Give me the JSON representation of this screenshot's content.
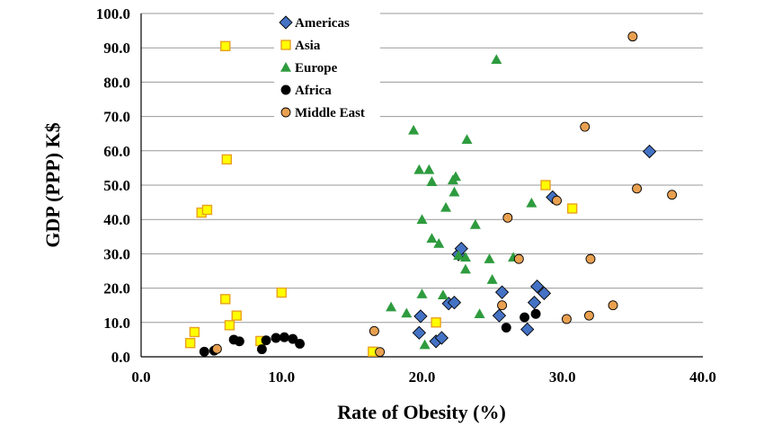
{
  "chart_data": {
    "type": "scatter",
    "xlabel": "Rate of Obesity (%)",
    "ylabel": "GDP (PPP) K$",
    "xlim": [
      0,
      40
    ],
    "ylim": [
      0,
      100
    ],
    "xticks": [
      "0.0",
      "10.0",
      "20.0",
      "30.0",
      "40.0"
    ],
    "yticks": [
      "0.0",
      "10.0",
      "20.0",
      "30.0",
      "40.0",
      "50.0",
      "60.0",
      "70.0",
      "80.0",
      "90.0",
      "100.0"
    ],
    "grid": "horizontal",
    "legend_position": "top-center",
    "series": [
      {
        "name": "Americas",
        "marker": "diamond",
        "color": "#4472C4",
        "points": [
          [
            19.8,
            7.0
          ],
          [
            19.9,
            11.8
          ],
          [
            21.0,
            4.5
          ],
          [
            21.4,
            5.5
          ],
          [
            21.9,
            15.5
          ],
          [
            22.3,
            15.8
          ],
          [
            22.6,
            29.8
          ],
          [
            22.8,
            31.5
          ],
          [
            25.5,
            12.0
          ],
          [
            25.7,
            18.8
          ],
          [
            27.5,
            8.0
          ],
          [
            28.0,
            15.8
          ],
          [
            28.2,
            20.5
          ],
          [
            28.7,
            18.5
          ],
          [
            29.3,
            46.5
          ],
          [
            36.2,
            59.8
          ]
        ]
      },
      {
        "name": "Asia",
        "marker": "square",
        "color": "#FFFF00",
        "points": [
          [
            6.0,
            90.5
          ],
          [
            6.1,
            57.5
          ],
          [
            4.3,
            42.0
          ],
          [
            4.7,
            42.8
          ],
          [
            6.0,
            16.8
          ],
          [
            3.8,
            7.2
          ],
          [
            3.5,
            4.0
          ],
          [
            6.3,
            9.2
          ],
          [
            6.8,
            12.0
          ],
          [
            8.5,
            4.6
          ],
          [
            10.0,
            18.7
          ],
          [
            16.5,
            1.5
          ],
          [
            21.0,
            10.0
          ],
          [
            28.8,
            50.0
          ],
          [
            30.7,
            43.2
          ]
        ]
      },
      {
        "name": "Europe",
        "marker": "triangle",
        "color": "#2E9B3E",
        "points": [
          [
            17.8,
            14.5
          ],
          [
            18.9,
            12.7
          ],
          [
            19.4,
            66.0
          ],
          [
            19.8,
            54.5
          ],
          [
            20.0,
            40.0
          ],
          [
            20.0,
            18.3
          ],
          [
            20.5,
            54.5
          ],
          [
            20.7,
            51.0
          ],
          [
            20.7,
            34.5
          ],
          [
            21.2,
            33.0
          ],
          [
            21.5,
            18.0
          ],
          [
            21.7,
            43.5
          ],
          [
            22.2,
            51.5
          ],
          [
            22.3,
            48.0
          ],
          [
            22.4,
            52.5
          ],
          [
            22.6,
            29.5
          ],
          [
            23.1,
            29.0
          ],
          [
            23.1,
            25.5
          ],
          [
            23.2,
            63.3
          ],
          [
            23.8,
            38.5
          ],
          [
            24.1,
            12.5
          ],
          [
            24.8,
            28.5
          ],
          [
            25.0,
            22.5
          ],
          [
            25.3,
            86.6
          ],
          [
            26.5,
            29.0
          ],
          [
            27.8,
            44.8
          ],
          [
            20.2,
            3.5
          ]
        ]
      },
      {
        "name": "Africa",
        "marker": "circle",
        "color": "#000000",
        "points": [
          [
            4.5,
            1.5
          ],
          [
            5.2,
            1.8
          ],
          [
            6.6,
            5.0
          ],
          [
            7.0,
            4.5
          ],
          [
            8.6,
            2.2
          ],
          [
            8.9,
            4.8
          ],
          [
            9.6,
            5.5
          ],
          [
            10.2,
            5.7
          ],
          [
            10.8,
            5.2
          ],
          [
            11.3,
            3.8
          ],
          [
            26.0,
            8.5
          ],
          [
            27.3,
            11.5
          ],
          [
            28.1,
            12.5
          ]
        ]
      },
      {
        "name": "Middle East",
        "marker": "circle",
        "color": "#E8A050",
        "points": [
          [
            5.4,
            2.3
          ],
          [
            16.6,
            7.5
          ],
          [
            17.0,
            1.4
          ],
          [
            25.7,
            15.0
          ],
          [
            26.1,
            40.5
          ],
          [
            26.9,
            28.5
          ],
          [
            29.6,
            45.5
          ],
          [
            30.3,
            11.0
          ],
          [
            31.6,
            67.0
          ],
          [
            31.9,
            12.0
          ],
          [
            32.0,
            28.5
          ],
          [
            33.6,
            15.0
          ],
          [
            35.0,
            93.3
          ],
          [
            35.3,
            49.0
          ],
          [
            37.8,
            47.2
          ]
        ]
      }
    ]
  }
}
